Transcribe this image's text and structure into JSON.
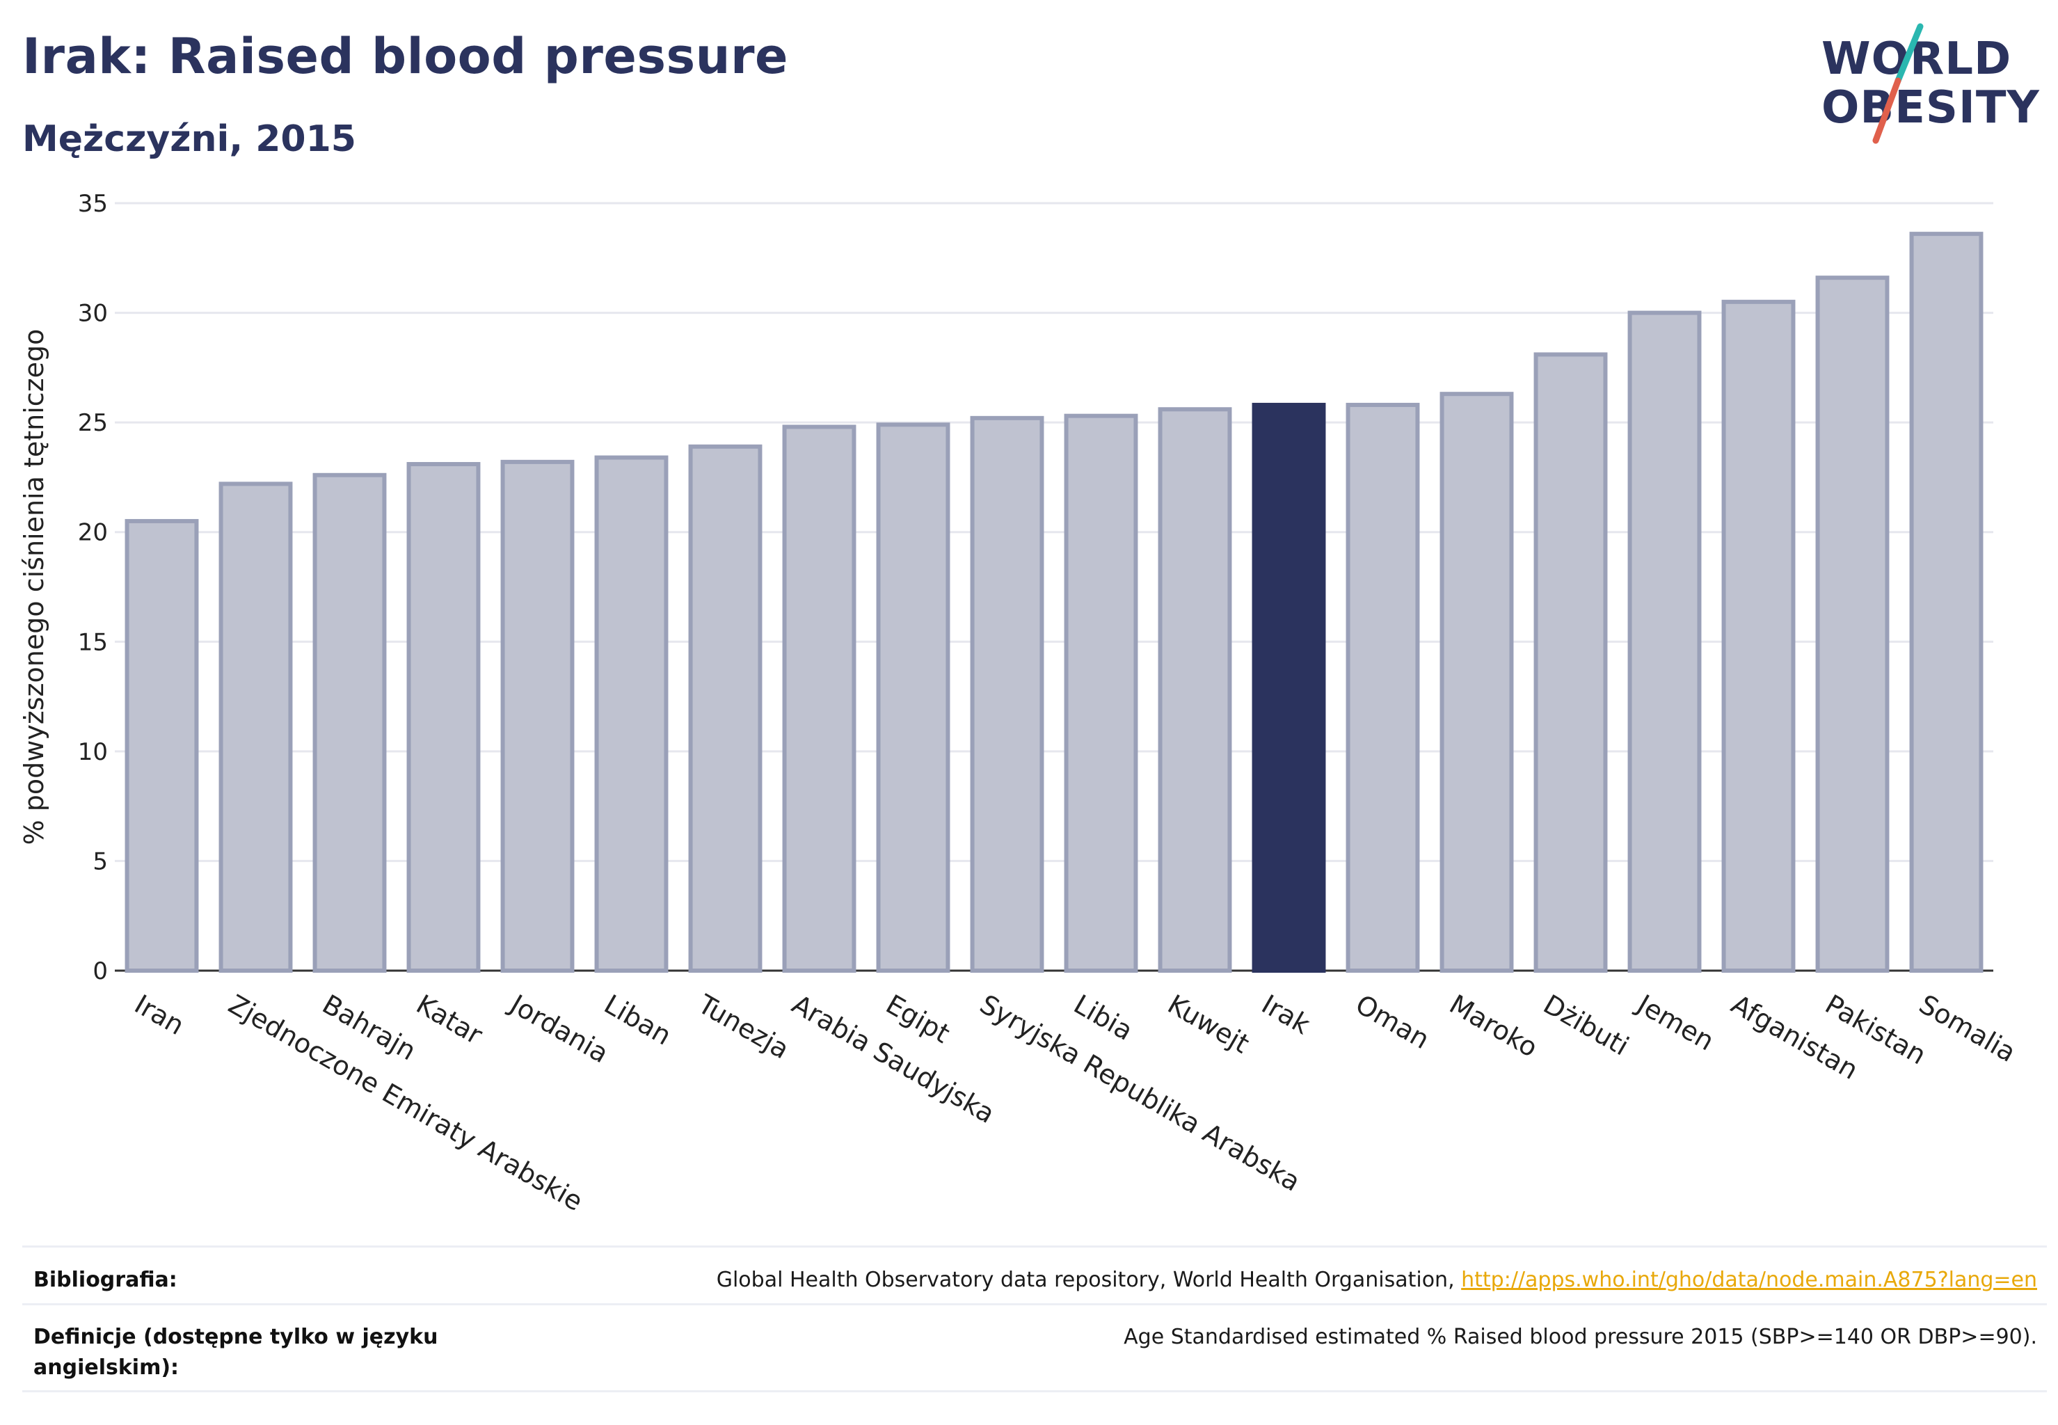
{
  "title": "Irak: Raised blood pressure",
  "subtitle": "Mężczyźni, 2015",
  "logo": {
    "line1": "WORLD",
    "line2": "OBESITY",
    "accent_colors": [
      "#2ab7b0",
      "#e0604c"
    ]
  },
  "colors": {
    "bar": "#bfc2d0",
    "bar_stroke": "#9aa0b8",
    "highlight": "#2b335e",
    "grid": "#e6e7ee",
    "text": "#2b335e"
  },
  "chart_data": {
    "type": "bar",
    "ylabel": "% podwyższonego ciśnienia tętniczego",
    "ylim": [
      0,
      35
    ],
    "yticks": [
      0,
      5,
      10,
      15,
      20,
      25,
      30,
      35
    ],
    "grid": true,
    "highlight": "Irak",
    "categories": [
      "Iran",
      "Zjednoczone Emiraty Arabskie",
      "Bahrajn",
      "Katar",
      "Jordania",
      "Liban",
      "Tunezja",
      "Arabia Saudyjska",
      "Egipt",
      "Syryjska Republika Arabska",
      "Libia",
      "Kuwejt",
      "Irak",
      "Oman",
      "Maroko",
      "Dżibuti",
      "Jemen",
      "Afganistan",
      "Pakistan",
      "Somalia"
    ],
    "values": [
      20.5,
      22.2,
      22.6,
      23.1,
      23.2,
      23.4,
      23.9,
      24.8,
      24.9,
      25.2,
      25.3,
      25.6,
      25.8,
      25.8,
      26.3,
      28.1,
      30.0,
      30.5,
      31.6,
      33.6
    ]
  },
  "footer": {
    "bibliography_label": "Bibliografia:",
    "bibliography_text": "Global Health Observatory data repository, World Health Organisation, ",
    "bibliography_link": "http://apps.who.int/gho/data/node.main.A875?lang=en",
    "definition_label": "Definicje (dostępne tylko w języku angielskim):",
    "definition_text": "Age Standardised estimated % Raised blood pressure 2015 (SBP>=140 OR DBP>=90)."
  }
}
